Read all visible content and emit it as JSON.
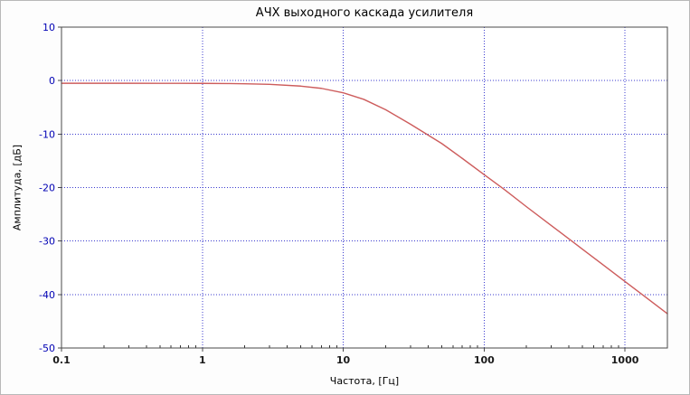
{
  "chart": {
    "title": "АЧХ выходного каскада усилителя",
    "xlabel": "Частота, [Гц]",
    "ylabel": "Амплитуда, [дБ]"
  },
  "chart_data": {
    "type": "line",
    "title": "АЧХ выходного каскада усилителя",
    "xlabel": "Частота, [Гц]",
    "ylabel": "Амплитуда, [дБ]",
    "x_scale": "log",
    "xlim": [
      0.1,
      2000
    ],
    "ylim": [
      -50,
      10
    ],
    "x_ticks": [
      0.1,
      1,
      10,
      100,
      1000
    ],
    "x_tick_labels": [
      "0.1",
      "1",
      "10",
      "100",
      "1000"
    ],
    "y_ticks": [
      10,
      0,
      -10,
      -20,
      -30,
      -40,
      -50
    ],
    "y_tick_labels": [
      "10",
      "0",
      "-10",
      "-20",
      "-30",
      "-40",
      "-50"
    ],
    "grid": {
      "show": true,
      "style": "dotted",
      "color": "#3a3acf"
    },
    "legend": "none",
    "colors": {
      "curve": "#cd5c5c",
      "border": "#4a4a4a",
      "y_tick_text": "#0000b4",
      "x_tick_text": "#1a1a1a",
      "minor_tick": "#333333",
      "plot_background": "#ffffff"
    },
    "series": [
      {
        "name": "АЧХ выходного каскада",
        "color": "#cd5c5c",
        "x": [
          0.1,
          0.15,
          0.2,
          0.3,
          0.5,
          0.7,
          1,
          1.5,
          2,
          3,
          5,
          7,
          10,
          14,
          20,
          30,
          50,
          70,
          100,
          140,
          200,
          300,
          500,
          700,
          1000,
          1400,
          2000
        ],
        "y": [
          -0.5,
          -0.5,
          -0.5,
          -0.5,
          -0.51,
          -0.51,
          -0.52,
          -0.55,
          -0.59,
          -0.7,
          -1.03,
          -1.45,
          -2.28,
          -3.51,
          -5.44,
          -8.15,
          -11.76,
          -14.55,
          -17.59,
          -20.41,
          -23.59,
          -27.1,
          -31.54,
          -34.46,
          -37.56,
          -40.48,
          -43.58
        ]
      }
    ]
  }
}
